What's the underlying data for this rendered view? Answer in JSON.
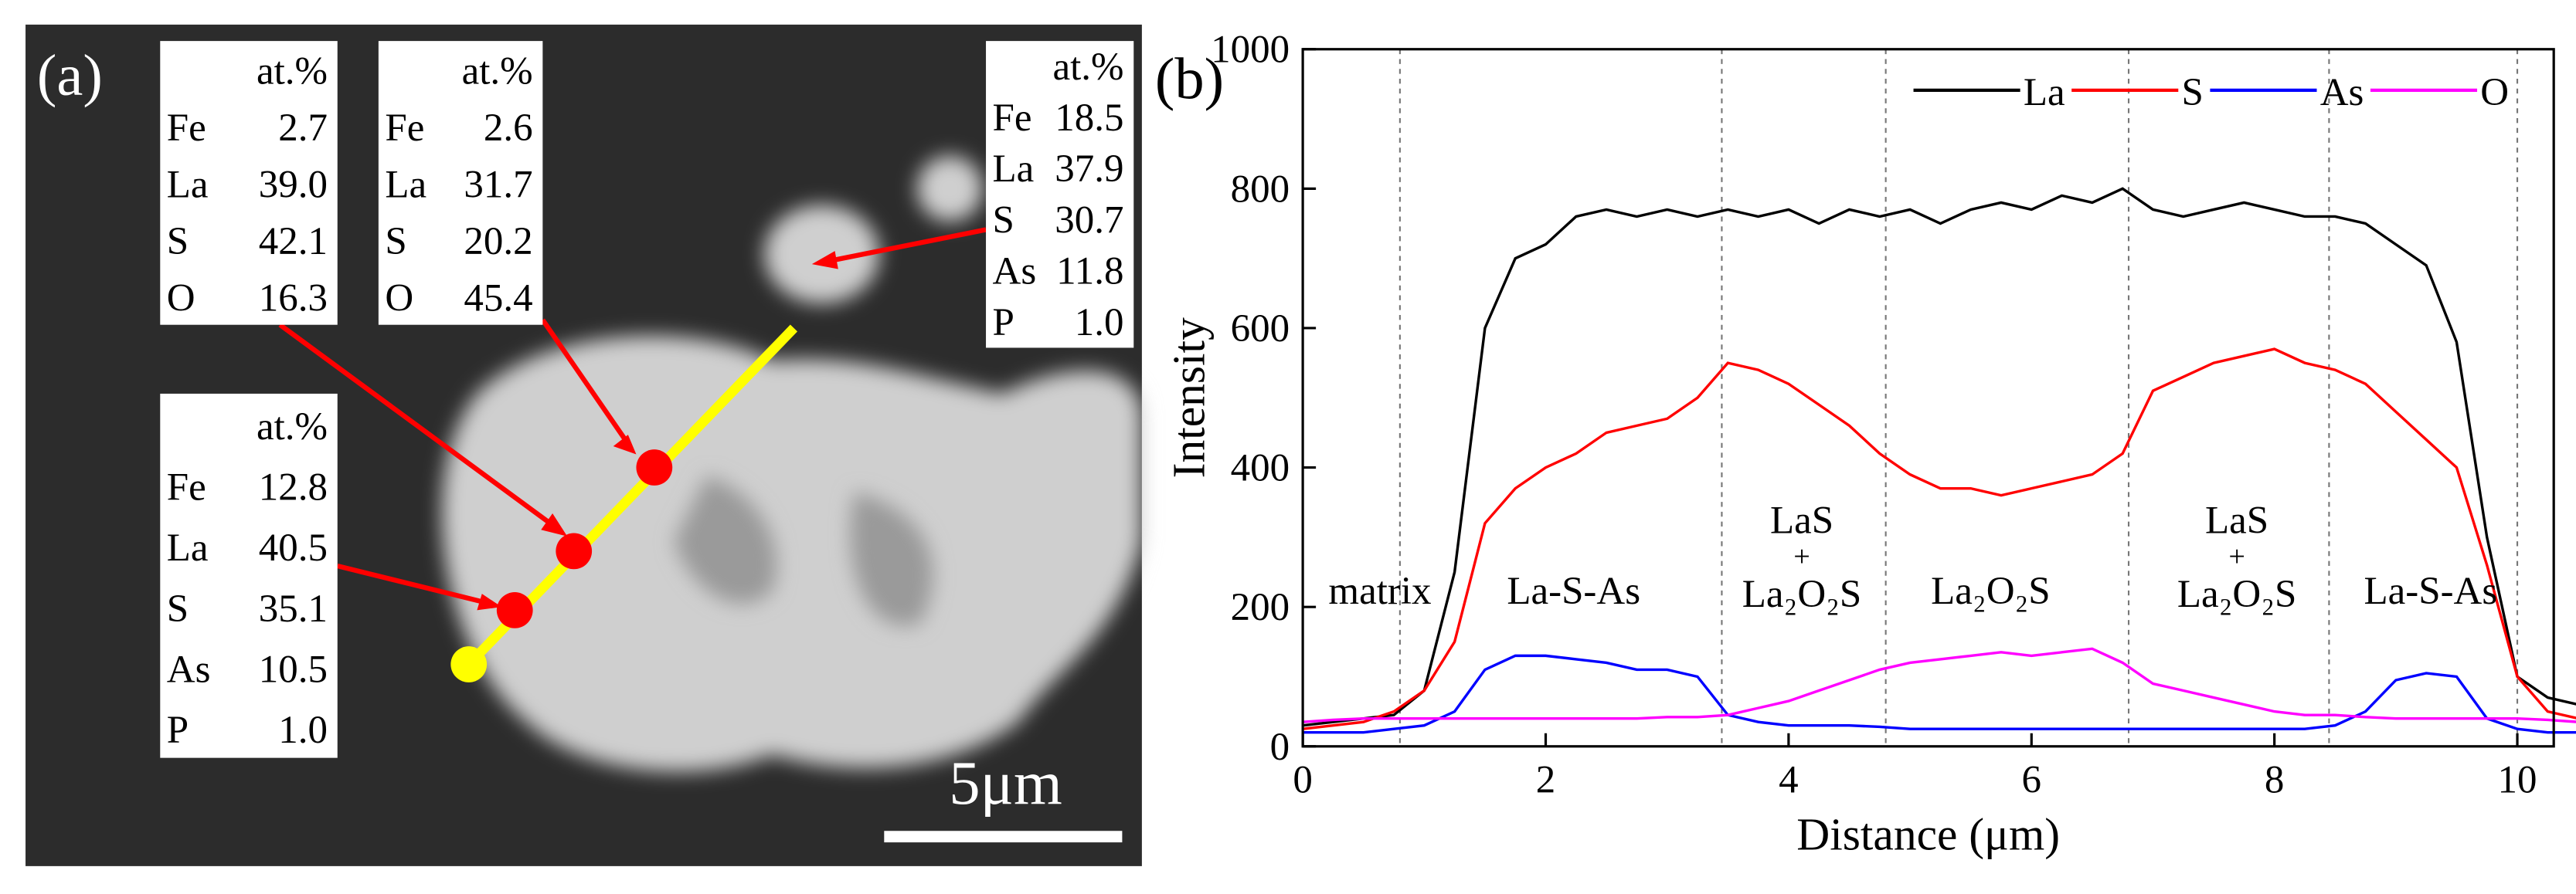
{
  "panel_a": {
    "label": "(a)",
    "scale_bar": "5μm",
    "tables": [
      {
        "header": "at.%",
        "rows": [
          [
            "Fe",
            "2.7"
          ],
          [
            "La",
            "39.0"
          ],
          [
            "S",
            "42.1"
          ],
          [
            "O",
            "16.3"
          ]
        ]
      },
      {
        "header": "at.%",
        "rows": [
          [
            "Fe",
            "2.6"
          ],
          [
            "La",
            "31.7"
          ],
          [
            "S",
            "20.2"
          ],
          [
            "O",
            "45.4"
          ]
        ]
      },
      {
        "header": "at.%",
        "rows": [
          [
            "Fe",
            "18.5"
          ],
          [
            "La",
            "37.9"
          ],
          [
            "S",
            "30.7"
          ],
          [
            "As",
            "11.8"
          ],
          [
            "P",
            "1.0"
          ]
        ]
      },
      {
        "header": "at.%",
        "rows": [
          [
            "Fe",
            "12.8"
          ],
          [
            "La",
            "40.5"
          ],
          [
            "S",
            "35.1"
          ],
          [
            "As",
            "10.5"
          ],
          [
            "P",
            "1.0"
          ]
        ]
      }
    ]
  },
  "chart_data": {
    "type": "line",
    "panel_label": "(b)",
    "x_label": "Distance (μm)",
    "y_label": "Intensity",
    "x": [
      0,
      0.25,
      0.5,
      0.75,
      1,
      1.25,
      1.5,
      1.75,
      2,
      2.25,
      2.5,
      2.75,
      3,
      3.25,
      3.5,
      3.75,
      4,
      4.25,
      4.5,
      4.75,
      5,
      5.25,
      5.5,
      5.75,
      6,
      6.25,
      6.5,
      6.75,
      7,
      7.25,
      7.5,
      7.75,
      8,
      8.25,
      8.5,
      8.75,
      9,
      9.25,
      9.5,
      9.75,
      10,
      10.25,
      10.5
    ],
    "series": [
      {
        "name": "La",
        "color": "#000000",
        "values": [
          30,
          35,
          40,
          45,
          80,
          250,
          600,
          700,
          720,
          760,
          770,
          760,
          770,
          760,
          770,
          760,
          770,
          750,
          770,
          760,
          770,
          750,
          770,
          780,
          770,
          790,
          780,
          800,
          770,
          760,
          770,
          780,
          770,
          760,
          760,
          750,
          720,
          690,
          580,
          300,
          100,
          70,
          60
        ]
      },
      {
        "name": "S",
        "color": "#ff0000",
        "values": [
          25,
          30,
          35,
          50,
          80,
          150,
          320,
          370,
          400,
          420,
          450,
          460,
          470,
          500,
          550,
          540,
          520,
          490,
          460,
          420,
          390,
          370,
          370,
          360,
          370,
          380,
          390,
          420,
          510,
          530,
          550,
          560,
          570,
          550,
          540,
          520,
          480,
          440,
          400,
          260,
          100,
          50,
          40
        ]
      },
      {
        "name": "As",
        "color": "#0000ff",
        "values": [
          20,
          20,
          20,
          25,
          30,
          50,
          110,
          130,
          130,
          125,
          120,
          110,
          110,
          100,
          45,
          35,
          30,
          30,
          30,
          28,
          25,
          25,
          25,
          25,
          25,
          25,
          25,
          25,
          25,
          25,
          25,
          25,
          25,
          25,
          30,
          50,
          95,
          105,
          100,
          40,
          25,
          20,
          20
        ]
      },
      {
        "name": "O",
        "color": "#ff00ff",
        "values": [
          35,
          38,
          40,
          40,
          40,
          40,
          40,
          40,
          40,
          40,
          40,
          40,
          42,
          42,
          45,
          55,
          65,
          80,
          95,
          110,
          120,
          125,
          130,
          135,
          130,
          135,
          140,
          120,
          90,
          80,
          70,
          60,
          50,
          45,
          45,
          42,
          40,
          40,
          40,
          40,
          40,
          38,
          35
        ]
      }
    ],
    "xlim": [
      0,
      10.3
    ],
    "xticks": [
      0,
      2,
      4,
      6,
      8,
      10
    ],
    "ylim": [
      0,
      1000
    ],
    "yticks": [
      0,
      200,
      400,
      600,
      800,
      1000
    ],
    "vlines": [
      0.8,
      3.45,
      4.8,
      6.8,
      8.45,
      10
    ],
    "regions": [
      [
        "matrix"
      ],
      [
        "La-S-As"
      ],
      [
        "LaS",
        "+",
        "La₂O₂S"
      ],
      [
        "La₂O₂S"
      ],
      [
        "LaS",
        "+",
        "La₂O₂S"
      ],
      [
        "La-S-As"
      ]
    ],
    "legend": "upper right"
  }
}
